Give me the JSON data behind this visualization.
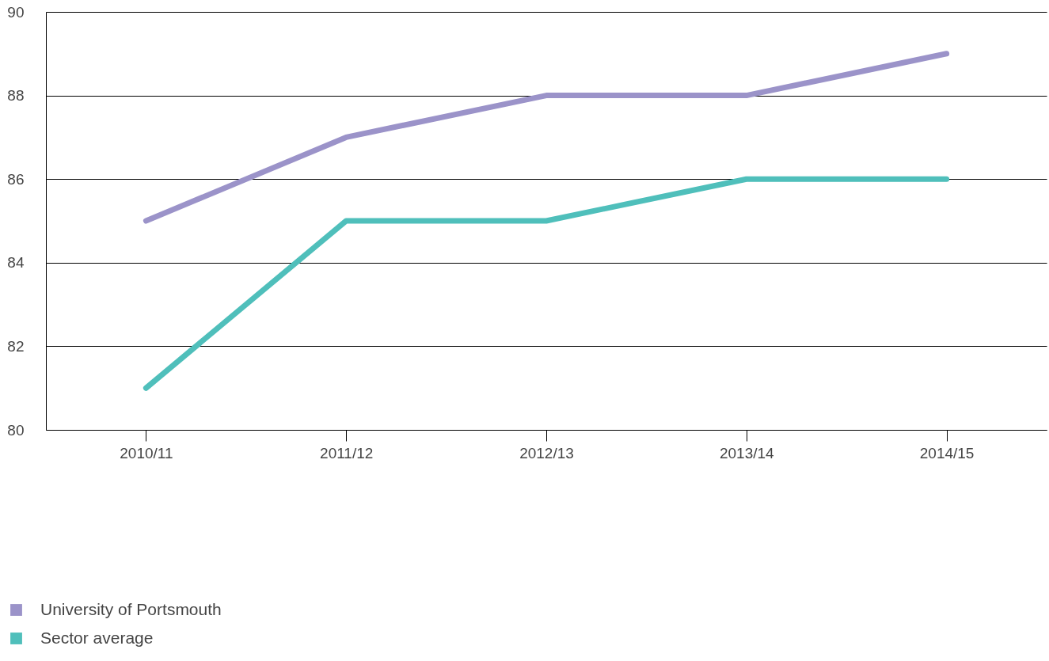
{
  "chart_data": {
    "type": "line",
    "categories": [
      "2010/11",
      "2011/12",
      "2012/13",
      "2013/14",
      "2014/15"
    ],
    "series": [
      {
        "name": "University of Portsmouth",
        "color": "#9b93c9",
        "values": [
          85,
          87,
          88,
          88,
          89
        ]
      },
      {
        "name": "Sector average",
        "color": "#4fbfbb",
        "values": [
          81,
          85,
          85,
          86,
          86
        ]
      }
    ],
    "ylim": [
      80,
      90
    ],
    "yticks": [
      80,
      82,
      84,
      86,
      88,
      90
    ],
    "grid": "y",
    "legend": "bottom left",
    "line_style": "solid"
  }
}
